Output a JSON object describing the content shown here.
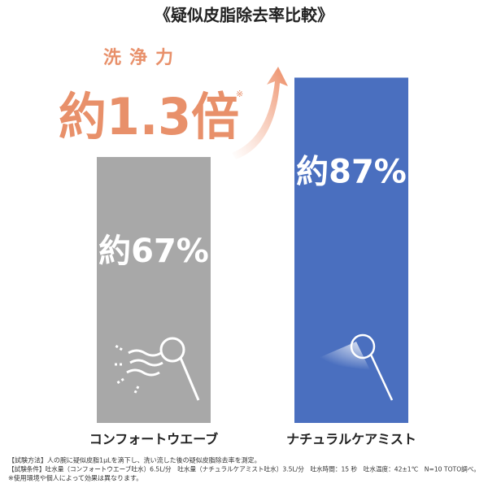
{
  "chart_data": {
    "type": "bar",
    "title": "《疑似皮脂除去率比較》",
    "headline": {
      "label": "洗浄力",
      "value_text": "約1.3倍",
      "note_mark": "※"
    },
    "categories": [
      "コンフォートウエーブ",
      "ナチュラルケアミスト"
    ],
    "values": [
      67,
      87
    ],
    "value_labels": [
      "約67%",
      "約87%"
    ],
    "colors": [
      "#a8a8a8",
      "#4a6fbf"
    ],
    "ylim": [
      0,
      100
    ],
    "footnotes": [
      "【試験方法】人の腕に疑似皮脂1μLを滴下し、洗い流した後の疑似皮脂除去率を測定。",
      "【試験条件】吐水量（コンフォートウエーブ吐水）6.5L/分　吐水量（ナチュラルケアミスト吐水）3.5L/分　吐水時間：15 秒　吐水温度：42±1℃　N=10 TOTO調べ。",
      "※使用環境や個人によって効果は異なります。"
    ]
  }
}
